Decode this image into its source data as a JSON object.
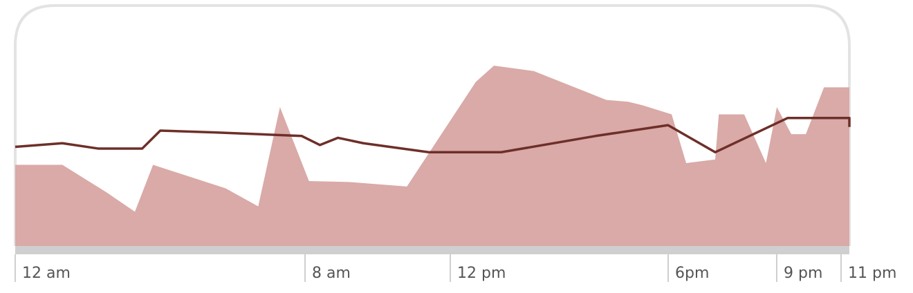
{
  "chart_data": {
    "type": "area",
    "x_ticks": [
      {
        "label": "12 am",
        "hour": 0
      },
      {
        "label": "8 am",
        "hour": 8
      },
      {
        "label": "12 pm",
        "hour": 12
      },
      {
        "label": "6pm",
        "hour": 18
      },
      {
        "label": "9 pm",
        "hour": 21
      },
      {
        "label": "11 pm",
        "hour": 23
      }
    ],
    "xlim": [
      0,
      23
    ],
    "ylim": [
      0,
      100
    ],
    "grid": false,
    "series": [
      {
        "kind": "area",
        "color": "#d9aaa7",
        "points": [
          [
            0.0,
            45
          ],
          [
            1.3,
            45
          ],
          [
            2.5,
            30
          ],
          [
            3.3,
            19
          ],
          [
            3.8,
            45
          ],
          [
            5.8,
            32
          ],
          [
            6.7,
            22
          ],
          [
            7.3,
            77
          ],
          [
            8.1,
            36
          ],
          [
            9.2,
            35.5
          ],
          [
            10.8,
            33
          ],
          [
            12.7,
            91
          ],
          [
            13.2,
            100
          ],
          [
            14.3,
            97
          ],
          [
            15.3,
            89
          ],
          [
            16.3,
            81
          ],
          [
            16.9,
            80
          ],
          [
            17.3,
            78
          ],
          [
            18.1,
            73
          ],
          [
            18.5,
            46
          ],
          [
            19.3,
            48
          ],
          [
            19.4,
            73
          ],
          [
            20.1,
            73
          ],
          [
            20.7,
            46
          ],
          [
            21.0,
            77
          ],
          [
            21.4,
            62
          ],
          [
            21.8,
            62
          ],
          [
            22.3,
            88
          ],
          [
            23.1,
            88
          ],
          [
            23.7,
            54
          ]
        ]
      },
      {
        "kind": "line",
        "color": "#6e2f29",
        "points": [
          [
            0.0,
            55
          ],
          [
            1.3,
            57
          ],
          [
            2.3,
            54
          ],
          [
            3.5,
            54
          ],
          [
            4.0,
            64
          ],
          [
            5.5,
            63
          ],
          [
            7.9,
            61
          ],
          [
            8.4,
            56
          ],
          [
            8.9,
            60
          ],
          [
            9.6,
            57
          ],
          [
            11.4,
            52
          ],
          [
            13.4,
            52
          ],
          [
            16.0,
            61
          ],
          [
            18.0,
            67
          ],
          [
            19.3,
            52
          ],
          [
            21.3,
            71
          ],
          [
            23.1,
            71
          ],
          [
            23.7,
            66
          ]
        ]
      }
    ]
  }
}
